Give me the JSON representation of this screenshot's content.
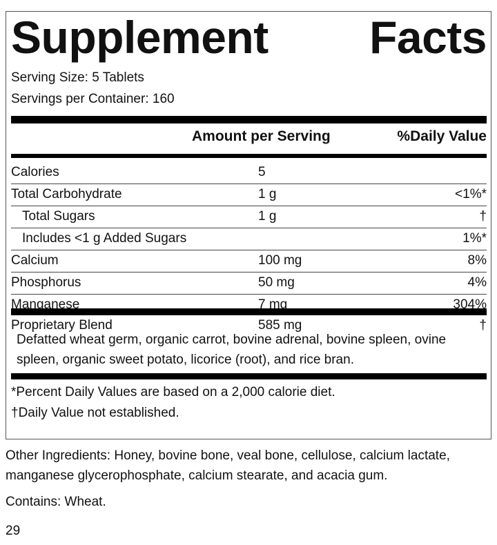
{
  "title": "Supplement Facts",
  "serving_size": "Serving Size: 5 Tablets",
  "servings_per_container": "Servings per Container: 160",
  "table": {
    "header": [
      "Amount per Serving",
      "%Daily Value"
    ],
    "rows": [
      {
        "name": "Calories",
        "amount": "5"
      },
      {
        "name": "Total Carbohydrate",
        "amount": "1 g",
        "daily_value": "<1%*"
      },
      {
        "name": "Total Sugars",
        "amount": "1 g",
        "daily_value": "†",
        "indent": true
      },
      {
        "name": "Includes <1 g Added Sugars",
        "daily_value": "1%*",
        "indent": true
      },
      {
        "name": "Calcium",
        "amount": "100 mg",
        "daily_value": "8%"
      },
      {
        "name": "Phosphorus",
        "amount": "50 mg",
        "daily_value": "4%"
      },
      {
        "name": "Manganese",
        "amount": "7 mg",
        "daily_value": "304%"
      }
    ],
    "blend": {
      "name": "Proprietary Blend",
      "amount": "585 mg",
      "daily_value": "†",
      "ingredients": "Defatted wheat germ, organic carrot, bovine adrenal, bovine spleen, ovine spleen, organic sweet potato, licorice (root), and rice bran."
    }
  },
  "footnotes": [
    "*Percent Daily Values are based on a 2,000 calorie diet.",
    "†Daily Value not established."
  ],
  "other_ingredients": "Other Ingredients: Honey, bovine bone, veal bone, cellulose, calcium lactate, manganese glycerophosphate, calcium stearate, and acacia gum.",
  "contains": "Contains: Wheat.",
  "page_number": "29"
}
